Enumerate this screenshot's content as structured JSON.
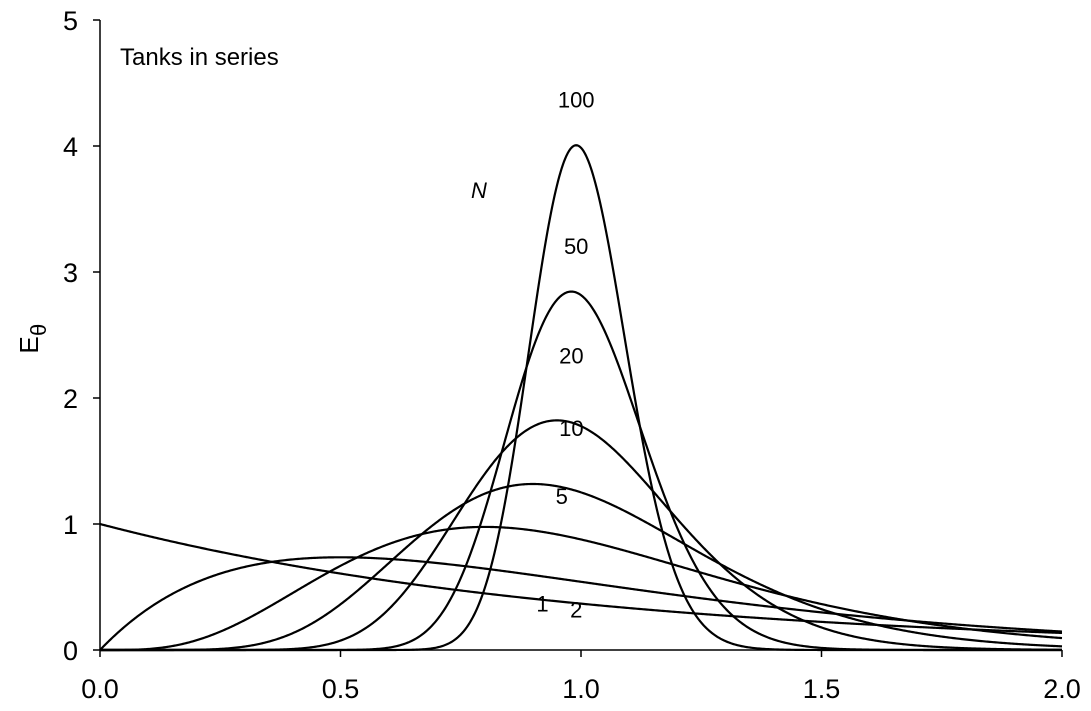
{
  "chart_data": {
    "type": "line",
    "title": "Tanks in series",
    "xlabel": "",
    "ylabel": "E",
    "ylabel_subscript": "θ",
    "xlim": [
      0.0,
      2.0
    ],
    "ylim": [
      0,
      5
    ],
    "x_ticks": [
      "0.0",
      "0.5",
      "1.0",
      "1.5",
      "2.0"
    ],
    "y_ticks": [
      "0",
      "1",
      "2",
      "3",
      "4",
      "5"
    ],
    "grid": false,
    "legend_title": "N",
    "series": [
      {
        "name": "1",
        "N": 1
      },
      {
        "name": "2",
        "N": 2
      },
      {
        "name": "5",
        "N": 5
      },
      {
        "name": "10",
        "N": 10
      },
      {
        "name": "20",
        "N": 20
      },
      {
        "name": "50",
        "N": 50
      },
      {
        "name": "100",
        "N": 100
      }
    ],
    "line_color": "#000000"
  }
}
